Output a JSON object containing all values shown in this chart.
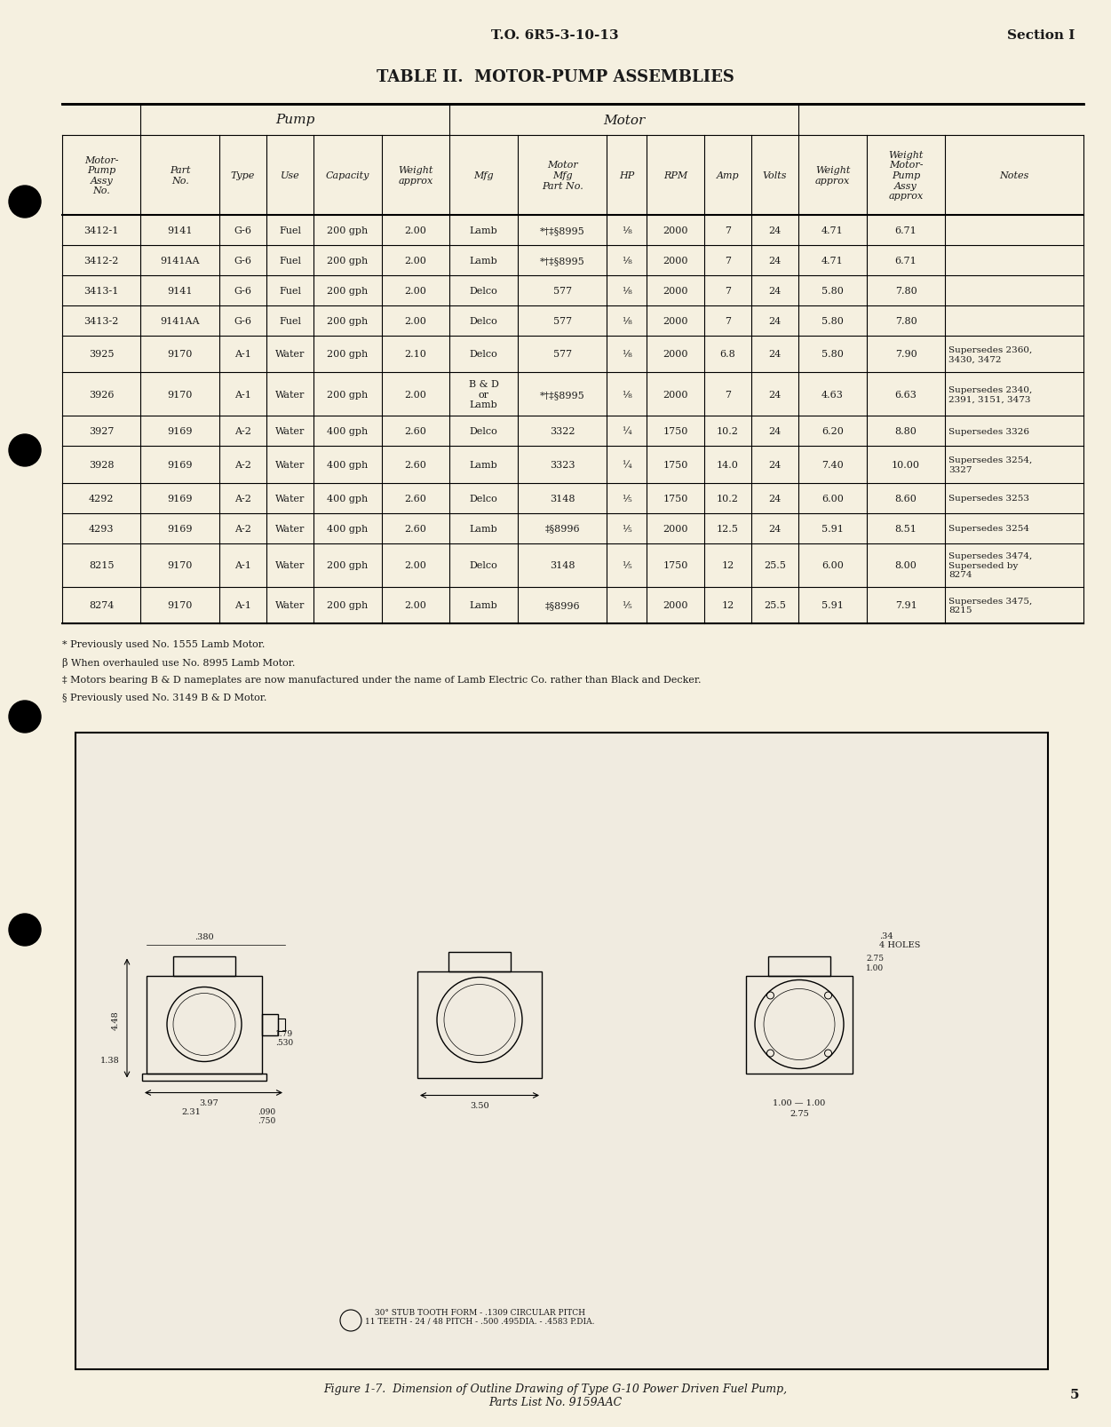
{
  "bg_color": "#f5f0e0",
  "header_center": "T.O. 6R5-3-10-13",
  "header_right": "Section I",
  "page_number": "5",
  "table_title": "TABLE II.  MOTOR-PUMP ASSEMBLIES",
  "col_headers_row1": [
    "",
    "",
    "Pump",
    "",
    "",
    "",
    "",
    "Motor",
    "",
    "",
    "",
    "",
    "Weight\nMotor-\nPump\nAssy\napprox",
    ""
  ],
  "col_headers_row2": [
    "Motor-\nPump\nAssy\nNo.",
    "Part\nNo.",
    "Type",
    "Use",
    "Capacity",
    "Weight\napprox",
    "Mfg",
    "Motor\nMfg\nPart No.",
    "HP",
    "RPM",
    "Amp",
    "Volts",
    "Weight\napprox",
    "Weight\nMotor-\nPump\nAssy\napprox",
    "Notes"
  ],
  "col_headers_display": [
    "Motor-\nPump\nAssy\nNo.",
    "Part\nNo.",
    "Type",
    "Use",
    "Capacity",
    "Weight\napprox",
    "Mfg",
    "Motor\nMfg\nPart No.",
    "HP",
    "RPM",
    "Amp",
    "Volts",
    "Weight\napprox",
    "Weight\nMotor-\nPump\nAssy\napprox",
    "Notes"
  ],
  "rows": [
    [
      "3412-1",
      "9141",
      "G-6",
      "Fuel",
      "200 gph",
      "2.00",
      "Lamb",
      "*†‡§8995",
      "⅛",
      "2000",
      "7",
      "24",
      "4.71",
      "6.71",
      ""
    ],
    [
      "3412-2",
      "9141AA",
      "G-6",
      "Fuel",
      "200 gph",
      "2.00",
      "Lamb",
      "*†‡§8995",
      "⅛",
      "2000",
      "7",
      "24",
      "4.71",
      "6.71",
      ""
    ],
    [
      "3413-1",
      "9141",
      "G-6",
      "Fuel",
      "200 gph",
      "2.00",
      "Delco",
      "577",
      "⅛",
      "2000",
      "7",
      "24",
      "5.80",
      "7.80",
      ""
    ],
    [
      "3413-2",
      "9141AA",
      "G-6",
      "Fuel",
      "200 gph",
      "2.00",
      "Delco",
      "577",
      "⅛",
      "2000",
      "7",
      "24",
      "5.80",
      "7.80",
      ""
    ],
    [
      "3925",
      "9170",
      "A-1",
      "Water",
      "200 gph",
      "2.10",
      "Delco",
      "577",
      "⅛",
      "2000",
      "6.8",
      "24",
      "5.80",
      "7.90",
      "Supersedes 2360,\n3430, 3472"
    ],
    [
      "3926",
      "9170",
      "A-1",
      "Water",
      "200 gph",
      "2.00",
      "B & D\nor\nLamb",
      "*†‡§8995",
      "⅛",
      "2000",
      "7",
      "24",
      "4.63",
      "6.63",
      "Supersedes 2340,\n2391, 3151, 3473"
    ],
    [
      "3927",
      "9169",
      "A-2",
      "Water",
      "400 gph",
      "2.60",
      "Delco",
      "3322",
      "¼",
      "1750",
      "10.2",
      "24",
      "6.20",
      "8.80",
      "Supersedes 3326"
    ],
    [
      "3928",
      "9169",
      "A-2",
      "Water",
      "400 gph",
      "2.60",
      "Lamb",
      "3323",
      "¼",
      "1750",
      "14.0",
      "24",
      "7.40",
      "10.00",
      "Supersedes 3254,\n3327"
    ],
    [
      "4292",
      "9169",
      "A-2",
      "Water",
      "400 gph",
      "2.60",
      "Delco",
      "3148",
      "⅕",
      "1750",
      "10.2",
      "24",
      "6.00",
      "8.60",
      "Supersedes 3253"
    ],
    [
      "4293",
      "9169",
      "A-2",
      "Water",
      "400 gph",
      "2.60",
      "Lamb",
      "‡§8996",
      "⅕",
      "2000",
      "12.5",
      "24",
      "5.91",
      "8.51",
      "Supersedes 3254"
    ],
    [
      "8215",
      "9170",
      "A-1",
      "Water",
      "200 gph",
      "2.00",
      "Delco",
      "3148",
      "⅕",
      "1750",
      "12",
      "25.5",
      "6.00",
      "8.00",
      "Supersedes 3474,\nSuperseded by\n8274"
    ],
    [
      "8274",
      "9170",
      "A-1",
      "Water",
      "200 gph",
      "2.00",
      "Lamb",
      "‡§8996",
      "⅕",
      "2000",
      "12",
      "25.5",
      "5.91",
      "7.91",
      "Supersedes 3475,\n8215"
    ]
  ],
  "footnotes": [
    "α Previously used No. 1555 Lamb Motor.",
    "β When overhauled use No. 8995 Lamb Motor.",
    "‡ Motors bearing B & D nameplates are now manufactured under the name of Lamb Electric Co. rather than Black and Decker.",
    "§ Previously used No. 3149 B & D Motor."
  ],
  "figure_caption": "Figure 1-7.  Dimension of Outline Drawing of Type G-10 Power Driven Fuel Pump,\nParts List No. 9159AAC"
}
